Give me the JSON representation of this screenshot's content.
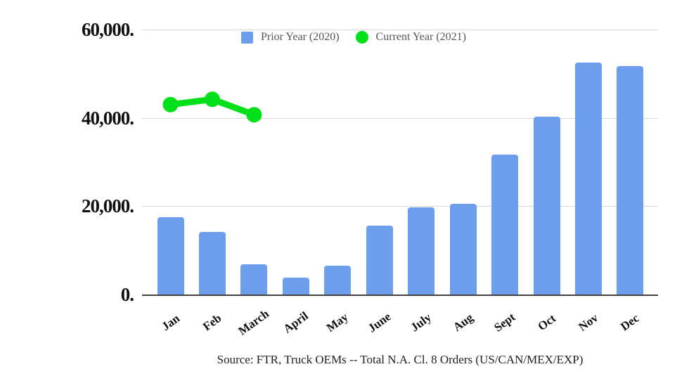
{
  "chart_data": {
    "type": "bar",
    "title": "",
    "categories": [
      "Jan",
      "Feb",
      "March",
      "April",
      "May",
      "June",
      "July",
      "Aug",
      "Sept",
      "Oct",
      "Nov",
      "Dec"
    ],
    "series": [
      {
        "name": "Prior Year (2020)",
        "type": "bar",
        "color": "#6d9eeb",
        "values": [
          17500,
          14100,
          6900,
          3800,
          6500,
          15600,
          19700,
          20600,
          31600,
          40200,
          52600,
          51800
        ]
      },
      {
        "name": "Current Year (2021)",
        "type": "line",
        "color": "#00e01a",
        "values": [
          43000,
          44200,
          40700,
          null,
          null,
          null,
          null,
          null,
          null,
          null,
          null,
          null
        ],
        "line_width": 9,
        "point_radius": 11
      }
    ],
    "ylim": [
      0,
      60000
    ],
    "yticks": {
      "values": [
        60000,
        40000,
        20000,
        0
      ],
      "labels": [
        "60,000.",
        "40,000.",
        "20,000.",
        "0."
      ]
    },
    "grid": true,
    "legend_position": "top",
    "caption": "Source: FTR, Truck OEMs -- Total N.A. Cl. 8 Orders (US/CAN/MEX/EXP)"
  },
  "colors": {
    "background": "#ffffff",
    "bar": "#6d9eeb",
    "line": "#00e01a",
    "gridline": "#d9d9d9",
    "axis": "#424242",
    "tick_text": "#111111",
    "legend_text": "#555555",
    "caption_text": "#202020"
  }
}
